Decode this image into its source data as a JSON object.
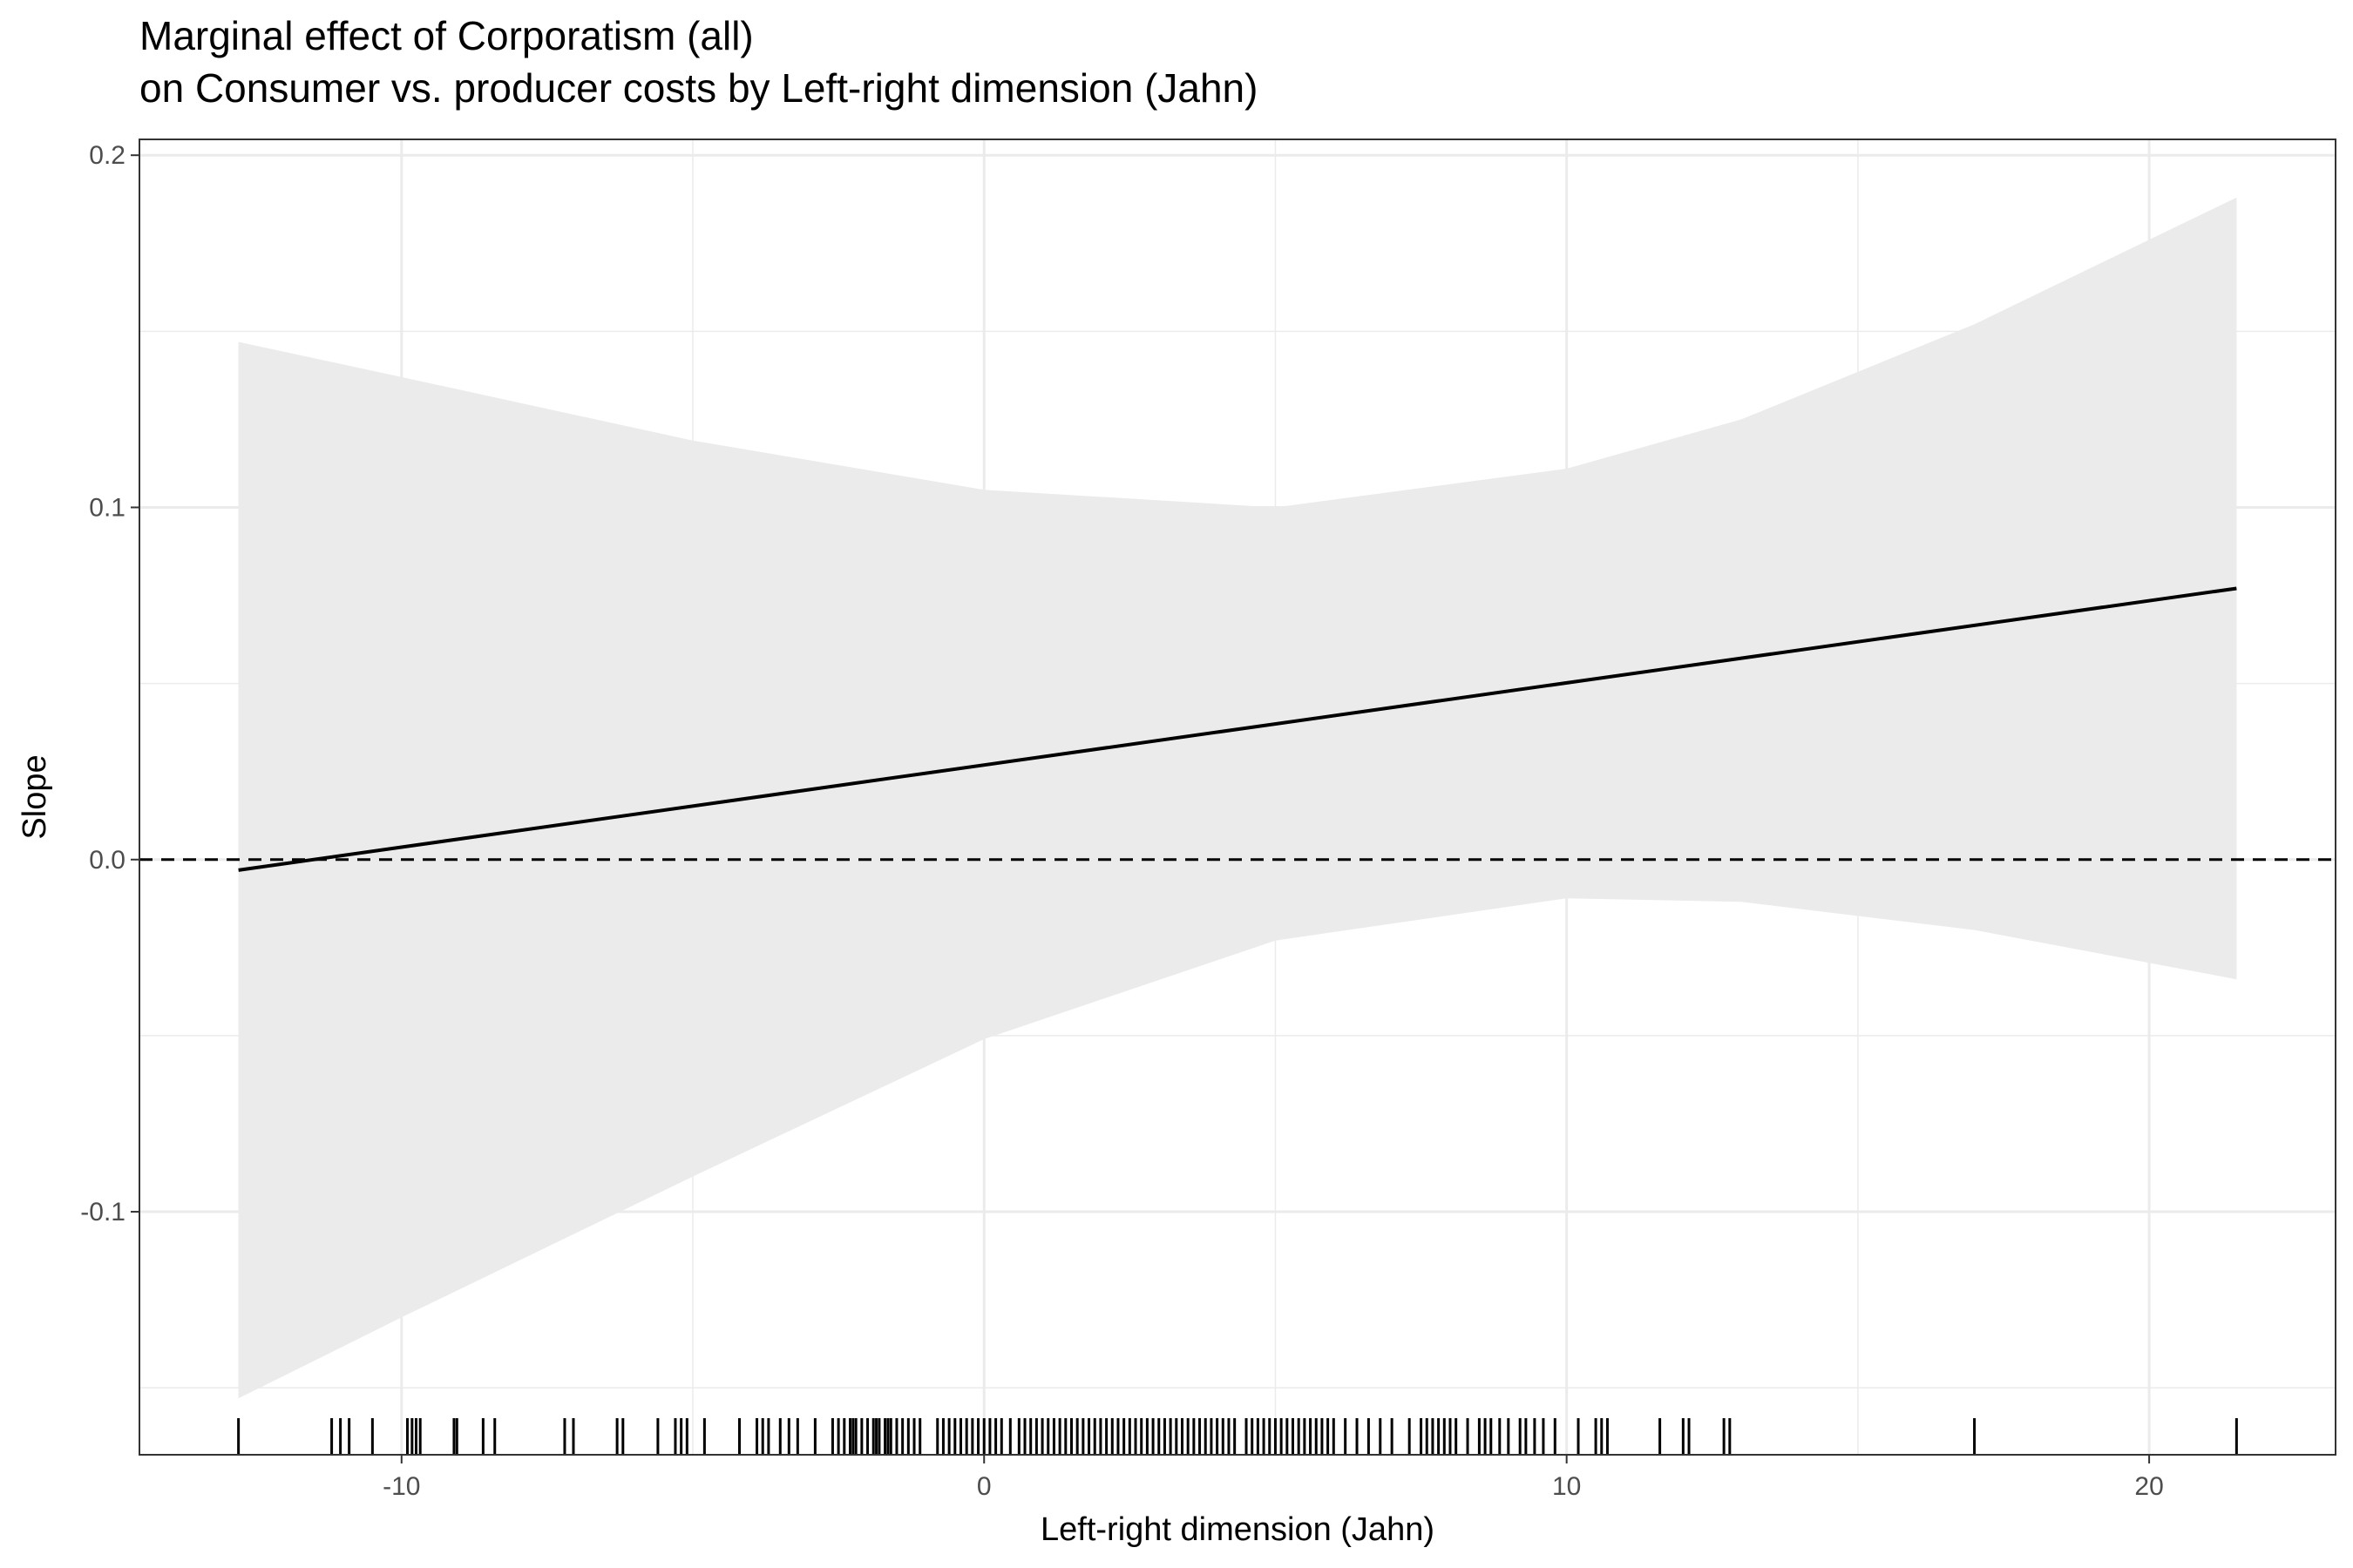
{
  "chart_data": {
    "type": "line",
    "title": "Marginal effect of Corporatism (all)",
    "subtitle": "on Consumer vs. producer costs by Left-right dimension (Jahn)",
    "xlabel": "Left-right dimension (Jahn)",
    "ylabel": "Slope",
    "xlim": [
      -14.5,
      23.2
    ],
    "ylim": [
      -0.169,
      0.2045
    ],
    "x_ticks": [
      -10,
      0,
      10,
      20
    ],
    "x_tick_labels": [
      "-10",
      "0",
      "10",
      "20"
    ],
    "y_ticks": [
      -0.1,
      0.0,
      0.1,
      0.2
    ],
    "y_tick_labels": [
      "-0.1",
      "0.0",
      "0.1",
      "0.2"
    ],
    "grid": true,
    "reference_line": {
      "y": 0,
      "style": "dashed"
    },
    "series": [
      {
        "x": [
          -12.8,
          21.5
        ],
        "y": [
          -0.003,
          0.077
        ]
      }
    ],
    "confidence_band": {
      "x": [
        -12.8,
        -10,
        -5,
        0,
        5,
        10,
        13,
        17,
        21.5
      ],
      "upper": [
        0.147,
        0.137,
        0.119,
        0.105,
        0.1,
        0.111,
        0.125,
        0.152,
        0.188
      ],
      "lower": [
        -0.153,
        -0.13,
        -0.09,
        -0.051,
        -0.023,
        -0.011,
        -0.012,
        -0.02,
        -0.034
      ]
    },
    "rug_x": [
      -12.8,
      -11.2,
      -11.05,
      -10.9,
      -10.5,
      -9.9,
      -9.82,
      -9.75,
      -9.68,
      -9.1,
      -9.05,
      -8.6,
      -8.4,
      -7.2,
      -7.05,
      -6.3,
      -6.2,
      -5.6,
      -5.3,
      -5.2,
      -5.1,
      -4.8,
      -4.2,
      -3.9,
      -3.8,
      -3.7,
      -3.5,
      -3.35,
      -3.2,
      -2.9,
      -2.6,
      -2.5,
      -2.4,
      -2.3,
      -2.25,
      -2.2,
      -2.1,
      -2.0,
      -1.9,
      -1.85,
      -1.8,
      -1.7,
      -1.65,
      -1.6,
      -1.5,
      -1.4,
      -1.3,
      -1.2,
      -1.1,
      -0.8,
      -0.7,
      -0.6,
      -0.5,
      -0.4,
      -0.3,
      -0.2,
      -0.1,
      0.0,
      0.1,
      0.2,
      0.3,
      0.45,
      0.6,
      0.7,
      0.8,
      0.9,
      1.0,
      1.1,
      1.2,
      1.3,
      1.4,
      1.5,
      1.6,
      1.7,
      1.8,
      1.9,
      2.0,
      2.1,
      2.2,
      2.3,
      2.4,
      2.5,
      2.6,
      2.7,
      2.8,
      2.9,
      3.0,
      3.1,
      3.2,
      3.3,
      3.4,
      3.5,
      3.6,
      3.7,
      3.8,
      3.9,
      4.0,
      4.1,
      4.2,
      4.3,
      4.5,
      4.6,
      4.7,
      4.8,
      4.9,
      5.0,
      5.1,
      5.2,
      5.3,
      5.4,
      5.5,
      5.6,
      5.7,
      5.8,
      5.9,
      6.0,
      6.2,
      6.4,
      6.6,
      6.8,
      7.0,
      7.3,
      7.5,
      7.6,
      7.7,
      7.8,
      7.9,
      8.0,
      8.1,
      8.3,
      8.5,
      8.6,
      8.7,
      8.85,
      9.0,
      9.2,
      9.3,
      9.45,
      9.6,
      9.8,
      10.2,
      10.5,
      10.6,
      10.7,
      11.6,
      12.0,
      12.1,
      12.7,
      12.8,
      17.0,
      21.5
    ]
  }
}
